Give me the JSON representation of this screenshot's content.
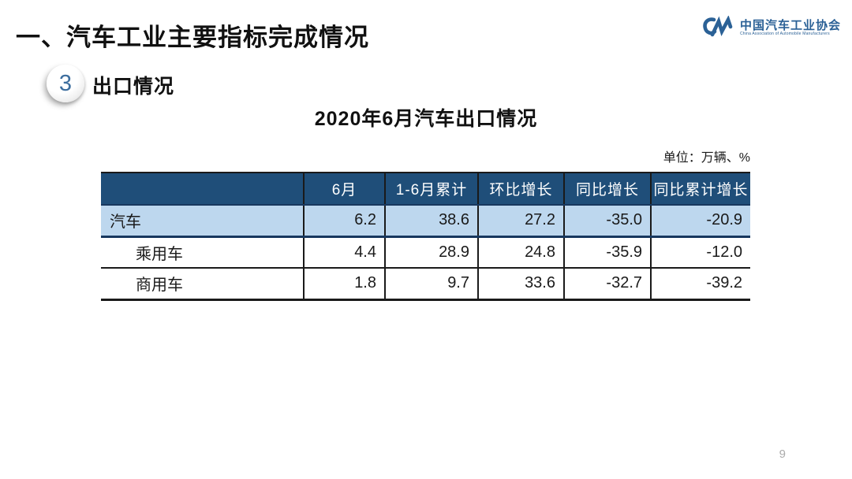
{
  "header": {
    "section_title": "一、汽车工业主要指标完成情况"
  },
  "logo": {
    "monogram": "CM",
    "org_name_cn": "中国汽车工业协会",
    "org_name_en": "China Association of Automobile Manufacturers",
    "color": "#2B6196"
  },
  "heading": {
    "badge_number": "3",
    "label": "出口情况"
  },
  "table_section": {
    "title": "2020年6月汽车出口情况",
    "unit_note": "单位：万辆、%"
  },
  "table": {
    "headers": [
      "",
      "6月",
      "1-6月累计",
      "环比增长",
      "同比增长",
      "同比累计增长"
    ],
    "rows": [
      {
        "label": "汽车",
        "indent": false,
        "highlight": true,
        "values": [
          "6.2",
          "38.6",
          "27.2",
          "-35.0",
          "-20.9"
        ]
      },
      {
        "label": "乘用车",
        "indent": true,
        "highlight": false,
        "values": [
          "4.4",
          "28.9",
          "24.8",
          "-35.9",
          "-12.0"
        ]
      },
      {
        "label": "商用车",
        "indent": true,
        "highlight": false,
        "values": [
          "1.8",
          "9.7",
          "33.6",
          "-32.7",
          "-39.2"
        ]
      }
    ]
  },
  "colors": {
    "header_bg": "#1F4E79",
    "highlight_row_bg": "#BDD7EE",
    "navy_border": "#17375E",
    "logo_blue": "#2B6196",
    "badge_number_blue": "#3D6E9E",
    "page_number_gray": "#ABABAB"
  },
  "footer": {
    "page_number": "9"
  }
}
